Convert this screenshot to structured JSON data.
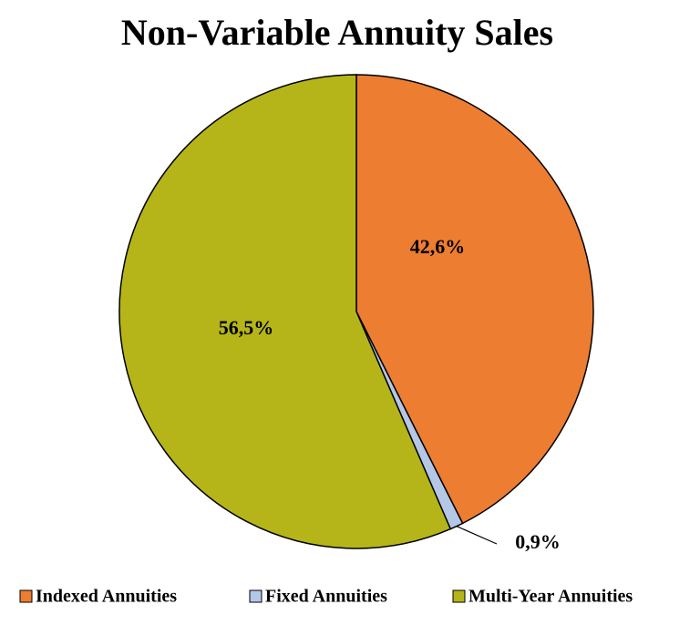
{
  "chart_data": {
    "type": "pie",
    "title": "Non-Variable Annuity Sales",
    "categories": [
      "Indexed Annuities",
      "Fixed Annuities",
      "Multi-Year Annuities"
    ],
    "values": [
      42.6,
      0.9,
      56.5
    ],
    "value_labels": [
      "42,6%",
      "0,9%",
      "56,5%"
    ],
    "colors": [
      "#ED7D31",
      "#B4C7E7",
      "#B5B51A"
    ],
    "legend": "bottom"
  }
}
